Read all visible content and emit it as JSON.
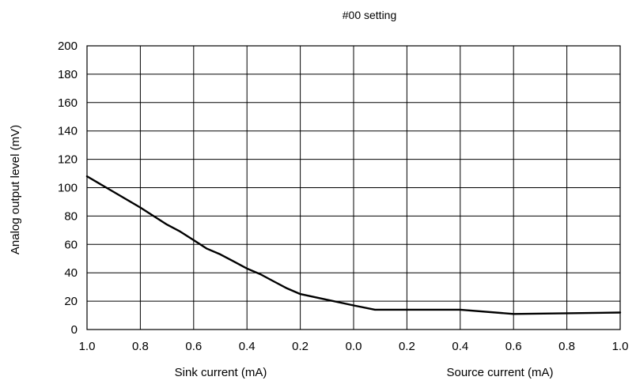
{
  "chart_data": {
    "type": "line",
    "title": "#00 setting",
    "ylabel": "Analog output level (mV)",
    "xlabel_left": "Sink current (mA)",
    "xlabel_right": "Source current (mA)",
    "ylim": [
      0,
      200
    ],
    "yticks": [
      "0",
      "20",
      "40",
      "60",
      "80",
      "100",
      "120",
      "140",
      "160",
      "180",
      "200"
    ],
    "xticks": [
      "1.0",
      "0.8",
      "0.6",
      "0.4",
      "0.2",
      "0.0",
      "0.2",
      "0.4",
      "0.6",
      "0.8",
      "1.0"
    ],
    "grid": true,
    "legend": "none",
    "series": [
      {
        "color": "#000000",
        "x": [
          -1.0,
          -0.9,
          -0.8,
          -0.7,
          -0.65,
          -0.6,
          -0.55,
          -0.5,
          -0.45,
          -0.4,
          -0.35,
          -0.3,
          -0.25,
          -0.2,
          -0.1,
          0.0,
          0.08,
          0.2,
          0.4,
          0.6,
          0.8,
          1.0
        ],
        "y": [
          108,
          97,
          86,
          74,
          69,
          63,
          57,
          53,
          48,
          43,
          39,
          34,
          29,
          25,
          21,
          17,
          14,
          14,
          14,
          11,
          11.5,
          12
        ]
      }
    ]
  }
}
